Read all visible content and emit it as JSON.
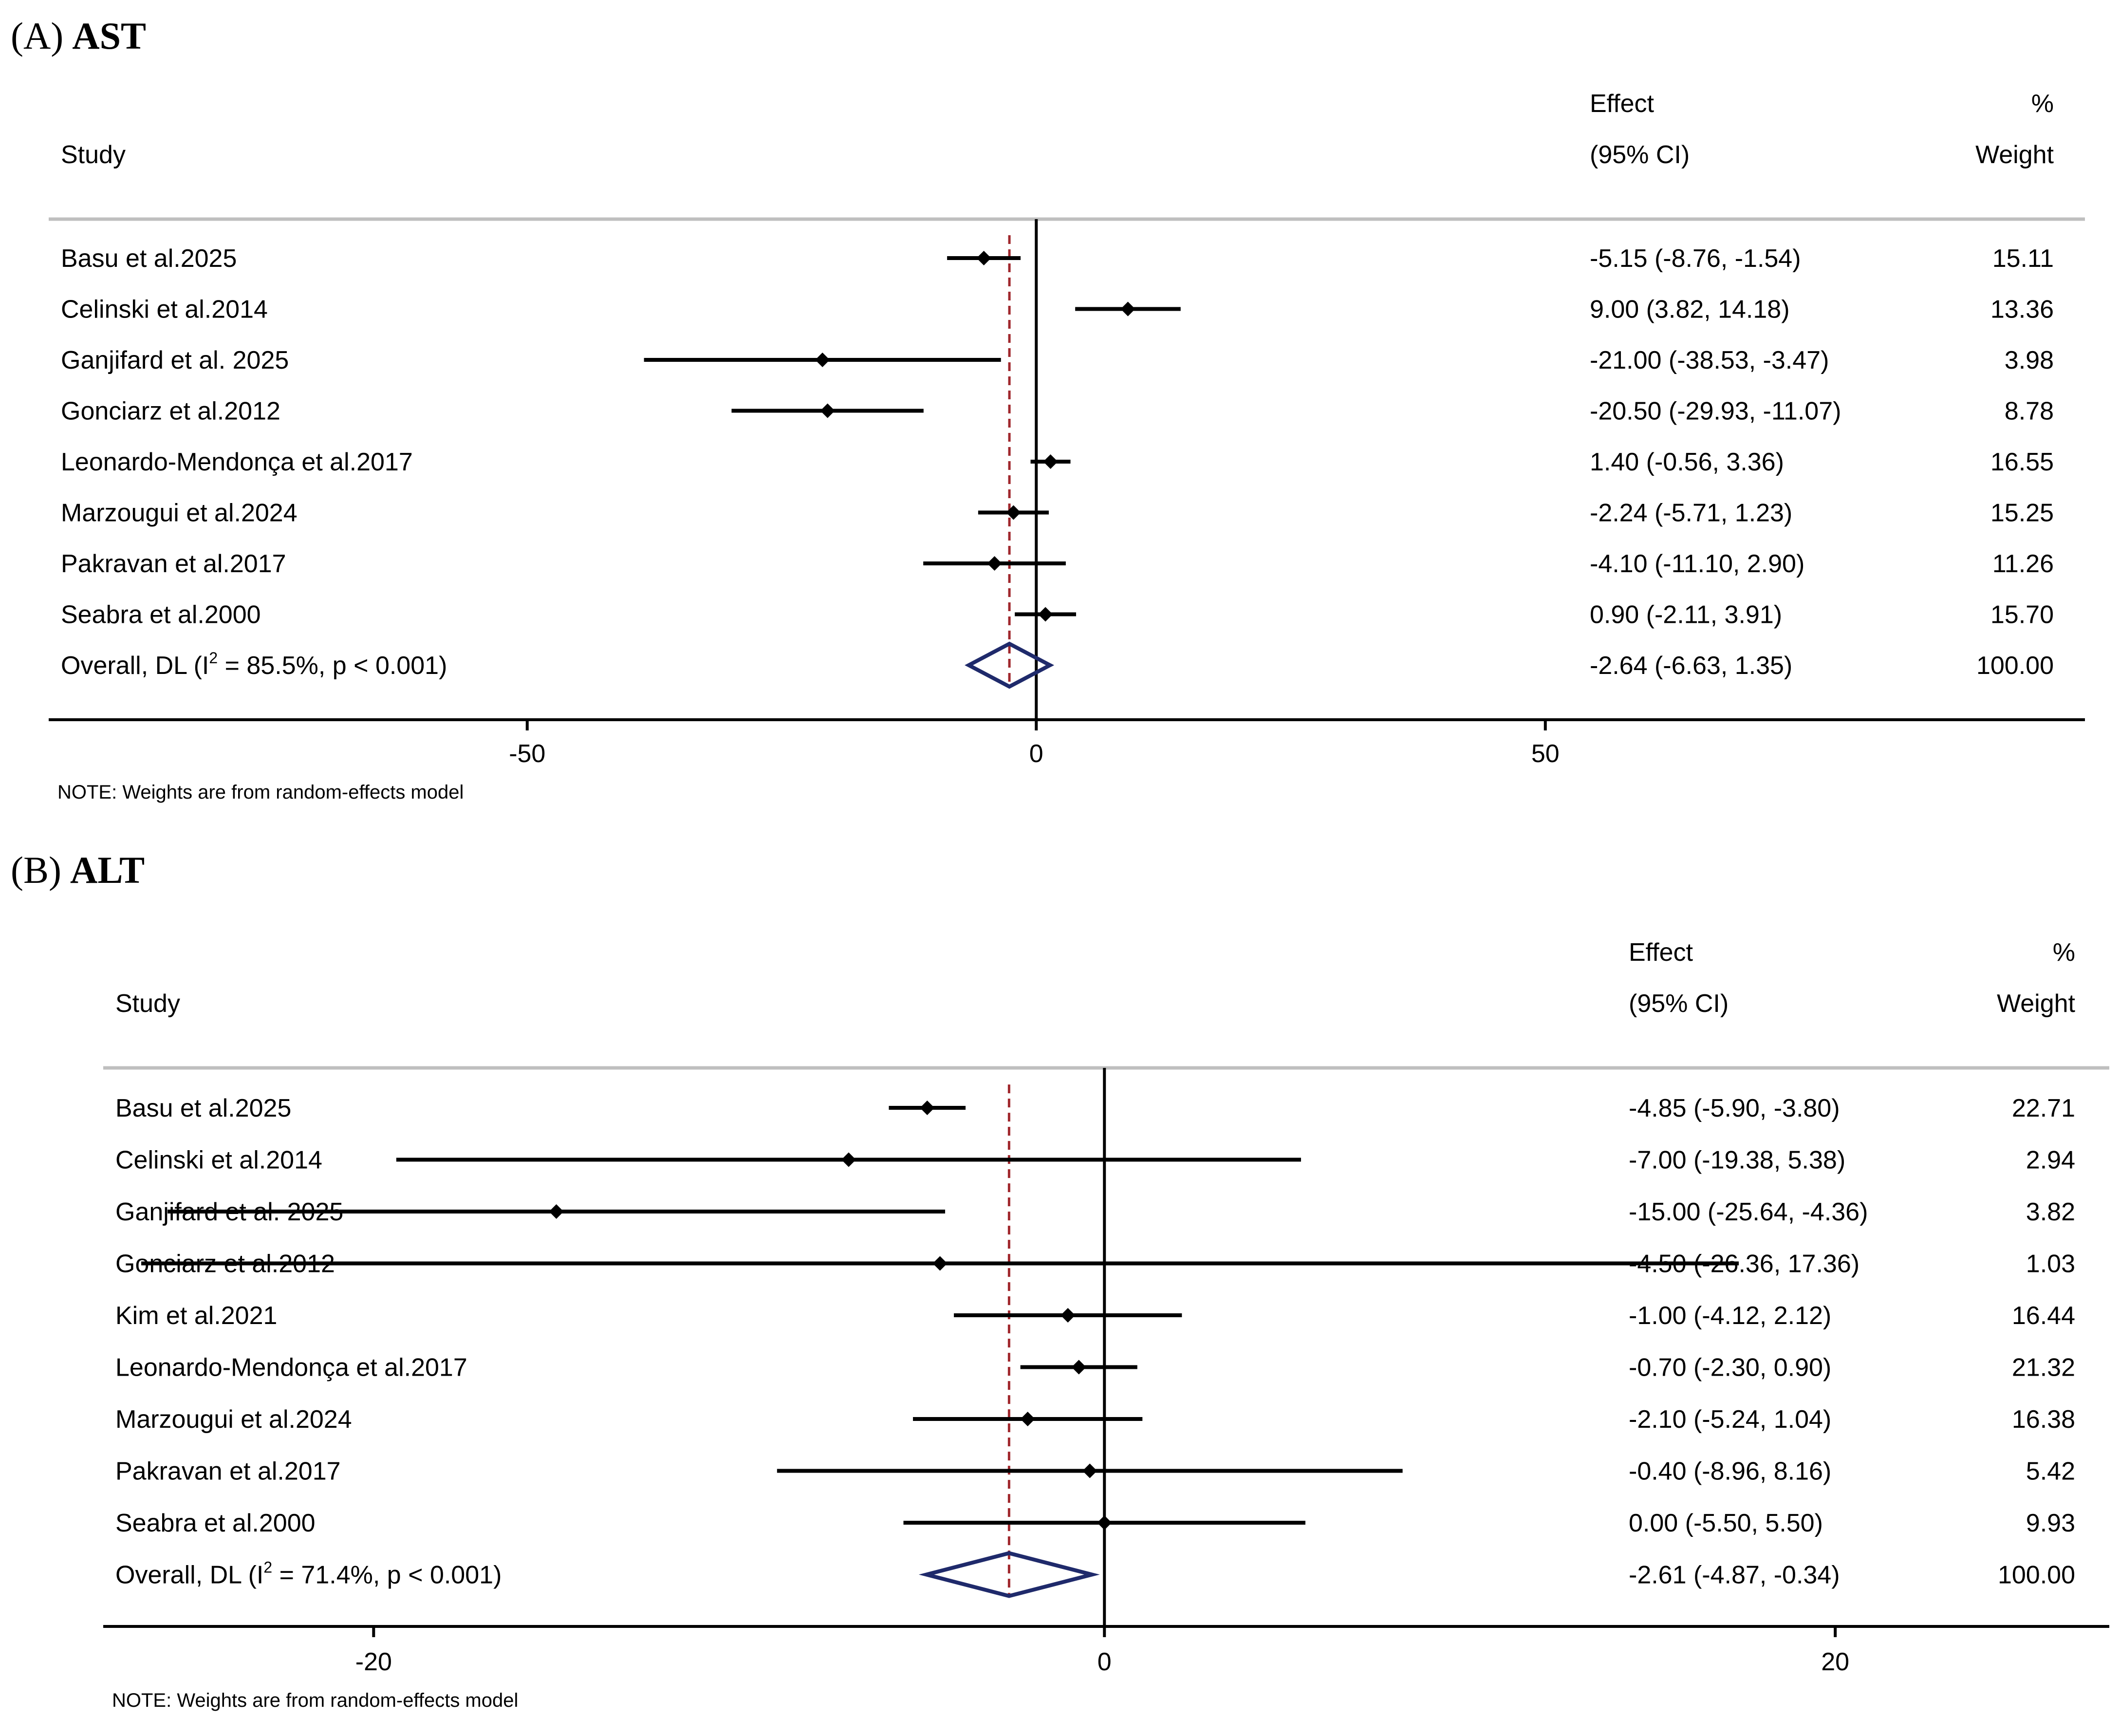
{
  "colors": {
    "text": "#000000",
    "rule": "#bfbfbf",
    "null_line": "#000000",
    "overall_line": "#a0282d",
    "diamond": "#1f2a6b"
  },
  "chart_data": [
    {
      "type": "forest",
      "panel_label": "(A)",
      "title": "AST",
      "header": {
        "study": "Study",
        "effect_top": "Effect",
        "effect_bottom": "(95% CI)",
        "weight_top": "%",
        "weight_bottom": "Weight"
      },
      "studies": [
        {
          "name": "Basu et al.2025",
          "effect": -5.15,
          "lower": -8.76,
          "upper": -1.54,
          "ci_text": "-5.15 (-8.76, -1.54)",
          "weight": "15.11"
        },
        {
          "name": "Celinski et al.2014",
          "effect": 9.0,
          "lower": 3.82,
          "upper": 14.18,
          "ci_text": "9.00 (3.82, 14.18)",
          "weight": "13.36"
        },
        {
          "name": "Ganjifard et al. 2025",
          "effect": -21.0,
          "lower": -38.53,
          "upper": -3.47,
          "ci_text": "-21.00 (-38.53, -3.47)",
          "weight": "3.98"
        },
        {
          "name": "Gonciarz et al.2012",
          "effect": -20.5,
          "lower": -29.93,
          "upper": -11.07,
          "ci_text": "-20.50 (-29.93, -11.07)",
          "weight": "8.78"
        },
        {
          "name": "Leonardo-Mendonça et al.2017",
          "effect": 1.4,
          "lower": -0.56,
          "upper": 3.36,
          "ci_text": "1.40 (-0.56, 3.36)",
          "weight": "16.55"
        },
        {
          "name": "Marzougui et al.2024",
          "effect": -2.24,
          "lower": -5.71,
          "upper": 1.23,
          "ci_text": "-2.24 (-5.71, 1.23)",
          "weight": "15.25"
        },
        {
          "name": "Pakravan et al.2017",
          "effect": -4.1,
          "lower": -11.1,
          "upper": 2.9,
          "ci_text": "-4.10 (-11.10, 2.90)",
          "weight": "11.26"
        },
        {
          "name": "Seabra et al.2000",
          "effect": 0.9,
          "lower": -2.11,
          "upper": 3.91,
          "ci_text": "0.90 (-2.11, 3.91)",
          "weight": "15.70"
        }
      ],
      "overall": {
        "name_prefix": "Overall, DL (I",
        "name_sup": "2",
        "name_suffix": " = 85.5%, p < 0.001)",
        "effect": -2.64,
        "lower": -6.63,
        "upper": 1.35,
        "ci_text": "-2.64 (-6.63, 1.35)",
        "weight": "100.00"
      },
      "xlim": [
        -97,
        103
      ],
      "ticks": [
        -50,
        0,
        50
      ],
      "tick_labels": [
        "-50",
        "0",
        "50"
      ],
      "note": "NOTE: Weights are from random-effects model"
    },
    {
      "type": "forest",
      "panel_label": "(B)",
      "title": "ALT",
      "header": {
        "study": "Study",
        "effect_top": "Effect",
        "effect_bottom": "(95% CI)",
        "weight_top": "%",
        "weight_bottom": "Weight"
      },
      "studies": [
        {
          "name": "Basu et al.2025",
          "effect": -4.85,
          "lower": -5.9,
          "upper": -3.8,
          "ci_text": "-4.85 (-5.90, -3.80)",
          "weight": "22.71"
        },
        {
          "name": "Celinski et al.2014",
          "effect": -7.0,
          "lower": -19.38,
          "upper": 5.38,
          "ci_text": "-7.00 (-19.38, 5.38)",
          "weight": "2.94"
        },
        {
          "name": "Ganjifard et al. 2025",
          "effect": -15.0,
          "lower": -25.64,
          "upper": -4.36,
          "ci_text": "-15.00 (-25.64, -4.36)",
          "weight": "3.82"
        },
        {
          "name": "Gonciarz et al.2012",
          "effect": -4.5,
          "lower": -26.36,
          "upper": 17.36,
          "ci_text": "-4.50 (-26.36, 17.36)",
          "weight": "1.03"
        },
        {
          "name": "Kim et al.2021",
          "effect": -1.0,
          "lower": -4.12,
          "upper": 2.12,
          "ci_text": "-1.00 (-4.12, 2.12)",
          "weight": "16.44"
        },
        {
          "name": "Leonardo-Mendonça et al.2017",
          "effect": -0.7,
          "lower": -2.3,
          "upper": 0.9,
          "ci_text": "-0.70 (-2.30, 0.90)",
          "weight": "21.32"
        },
        {
          "name": "Marzougui et al.2024",
          "effect": -2.1,
          "lower": -5.24,
          "upper": 1.04,
          "ci_text": "-2.10 (-5.24, 1.04)",
          "weight": "16.38"
        },
        {
          "name": "Pakravan et al.2017",
          "effect": -0.4,
          "lower": -8.96,
          "upper": 8.16,
          "ci_text": "-0.40 (-8.96, 8.16)",
          "weight": "5.42"
        },
        {
          "name": "Seabra et al.2000",
          "effect": 0.0,
          "lower": -5.5,
          "upper": 5.5,
          "ci_text": "0.00 (-5.50, 5.50)",
          "weight": "9.93"
        }
      ],
      "overall": {
        "name_prefix": "Overall, DL (I",
        "name_sup": "2",
        "name_suffix": " = 71.4%, p < 0.001)",
        "effect": -2.61,
        "lower": -4.87,
        "upper": -0.34,
        "ci_text": "-2.61 (-4.87, -0.34)",
        "weight": "100.00"
      },
      "xlim": [
        -27.4,
        27.5
      ],
      "ticks": [
        -20,
        0,
        20
      ],
      "tick_labels": [
        "-20",
        "0",
        "20"
      ],
      "note": "NOTE: Weights are from random-effects model"
    }
  ]
}
